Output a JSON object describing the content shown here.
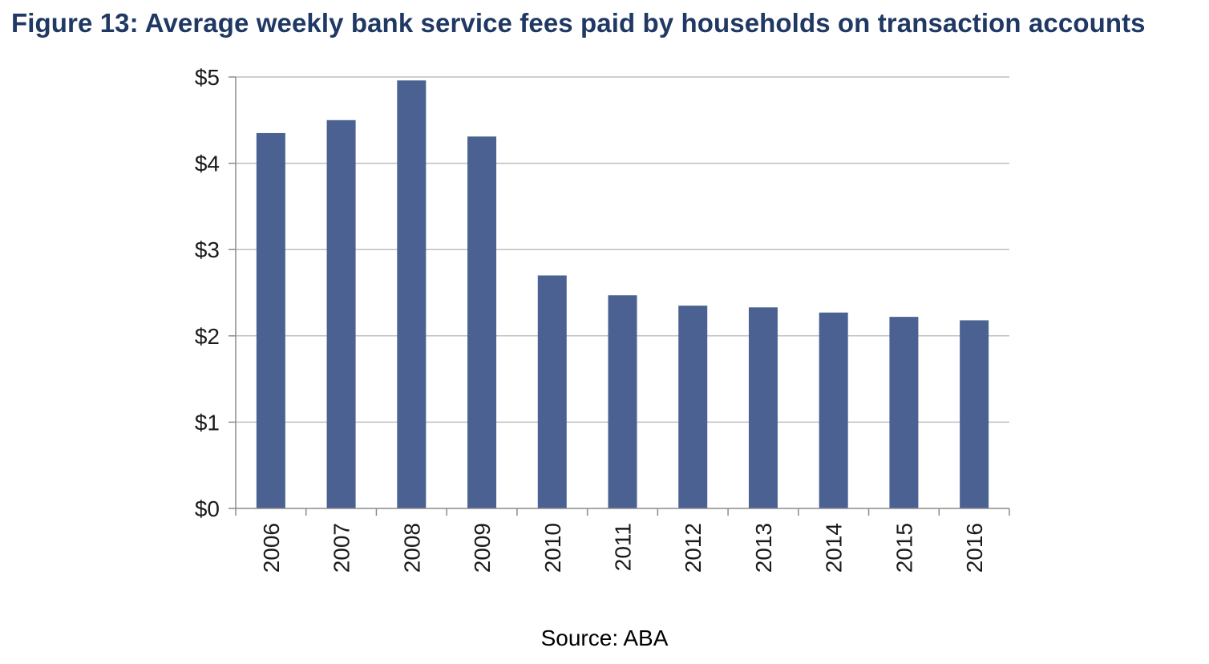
{
  "title": "Figure 13: Average weekly bank service fees paid by households on transaction accounts",
  "source": "Source: ABA",
  "colors": {
    "bar": "#4a6191",
    "grid": "#bfbfbf",
    "axis": "#8c8c8c",
    "title": "#1f3864"
  },
  "chart_data": {
    "type": "bar",
    "title": "Figure 13: Average weekly bank service fees paid by households on transaction accounts",
    "categories": [
      "2006",
      "2007",
      "2008",
      "2009",
      "2010",
      "2011",
      "2012",
      "2013",
      "2014",
      "2015",
      "2016"
    ],
    "values": [
      4.35,
      4.5,
      4.96,
      4.31,
      2.7,
      2.47,
      2.35,
      2.33,
      2.27,
      2.22,
      2.18
    ],
    "y_ticks": [
      "$0",
      "$1",
      "$2",
      "$3",
      "$4",
      "$5"
    ],
    "ylim": [
      0,
      5
    ],
    "xlabel": "",
    "ylabel": "",
    "grid": true,
    "legend": "none"
  }
}
